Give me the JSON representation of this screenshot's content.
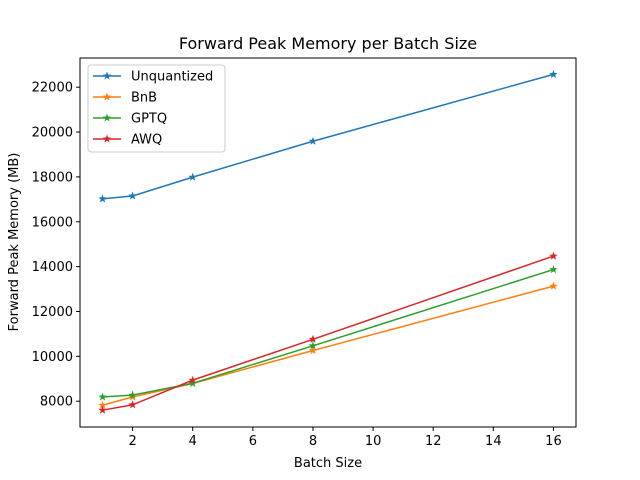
{
  "chart_data": {
    "type": "line",
    "title": "Forward Peak Memory per Batch Size",
    "xlabel": "Batch Size",
    "ylabel": "Forward Peak Memory (MB)",
    "x": [
      1,
      2,
      4,
      8,
      16
    ],
    "xlim": [
      0.25,
      16.75
    ],
    "ylim": [
      6850,
      23300
    ],
    "xticks": [
      2,
      4,
      6,
      8,
      10,
      12,
      14,
      16
    ],
    "yticks": [
      8000,
      10000,
      12000,
      14000,
      16000,
      18000,
      20000,
      22000
    ],
    "grid": false,
    "legend_position": "top-left",
    "marker": "star",
    "series": [
      {
        "name": "Unquantized",
        "color": "#1f77b4",
        "values": [
          17020,
          17150,
          17990,
          19590,
          22570
        ]
      },
      {
        "name": "BnB",
        "color": "#ff7f0e",
        "values": [
          7820,
          8190,
          8790,
          10260,
          13130
        ]
      },
      {
        "name": "GPTQ",
        "color": "#2ca02c",
        "values": [
          8190,
          8270,
          8800,
          10470,
          13870
        ]
      },
      {
        "name": "AWQ",
        "color": "#d62728",
        "values": [
          7600,
          7840,
          8940,
          10760,
          14470
        ]
      }
    ]
  }
}
